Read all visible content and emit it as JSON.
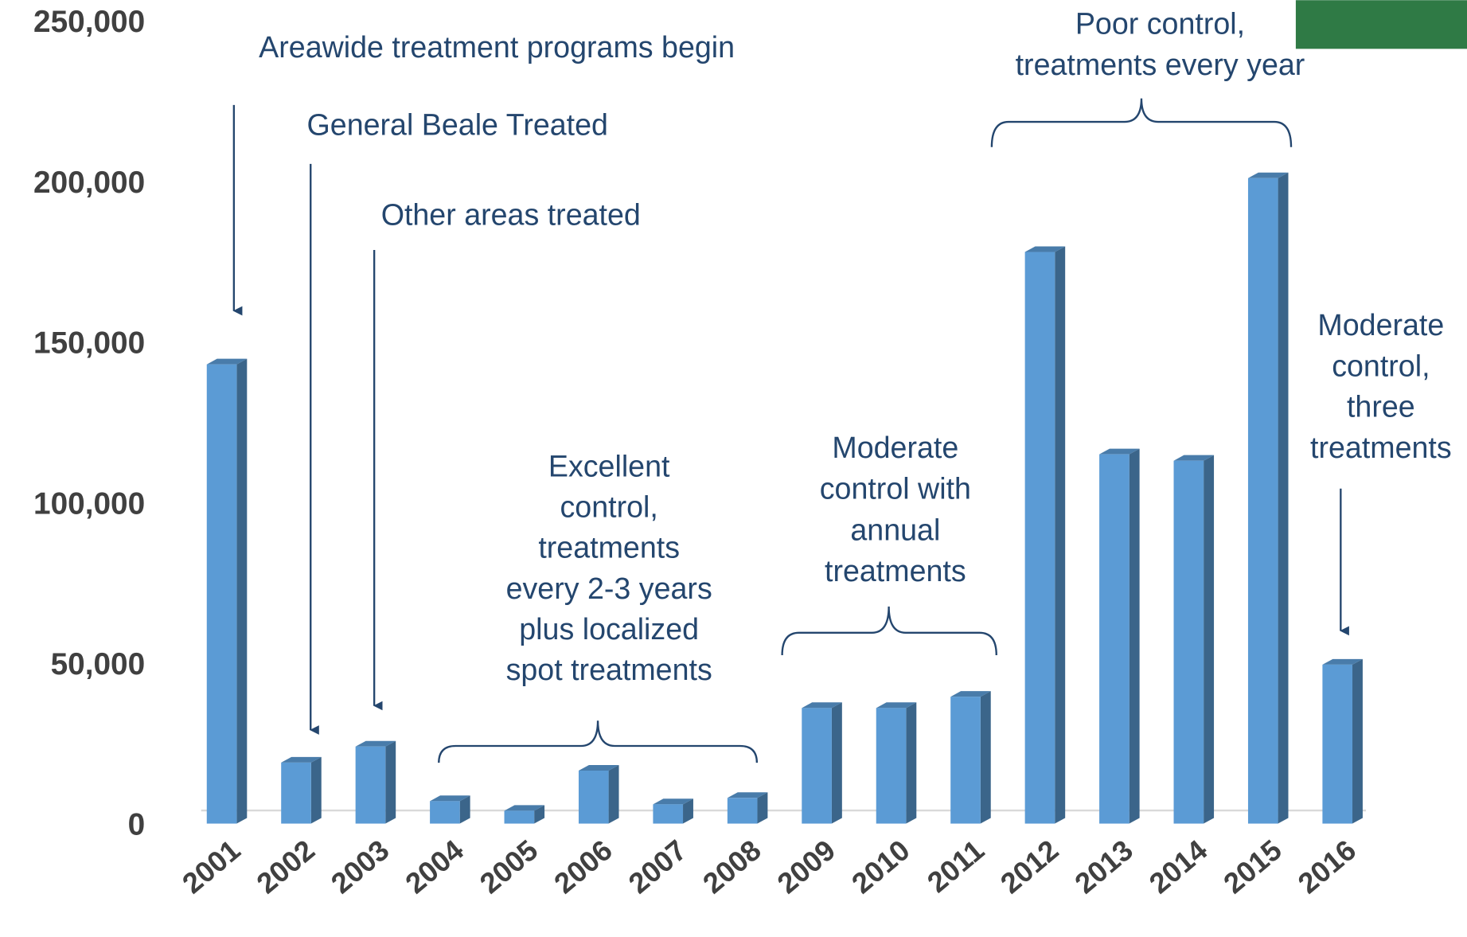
{
  "chart_data": {
    "type": "bar",
    "categories": [
      "2001",
      "2002",
      "2003",
      "2004",
      "2005",
      "2006",
      "2007",
      "2008",
      "2009",
      "2010",
      "2011",
      "2012",
      "2013",
      "2014",
      "2015",
      "2016"
    ],
    "values": [
      143000,
      19000,
      24000,
      7000,
      4000,
      16500,
      6000,
      8000,
      36000,
      36000,
      39500,
      178000,
      115000,
      113000,
      201000,
      49500
    ],
    "color": "#5b9bd5",
    "ylim": [
      0,
      250000
    ],
    "yticks": [
      {
        "value": 0,
        "label": "0"
      },
      {
        "value": 50000,
        "label": "50,000"
      },
      {
        "value": 100000,
        "label": "100,000"
      },
      {
        "value": 150000,
        "label": "150,000"
      },
      {
        "value": 200000,
        "label": "200,000"
      },
      {
        "value": 250000,
        "label": "250,000"
      }
    ],
    "annotations": [
      {
        "lines": [
          "Areawide treatment programs begin"
        ]
      },
      {
        "lines": [
          "General Beale Treated"
        ]
      },
      {
        "lines": [
          "Other areas treated"
        ]
      },
      {
        "lines": [
          "Excellent",
          "control,",
          "treatments",
          "every 2-3 years",
          "plus localized",
          "spot treatments"
        ]
      },
      {
        "lines": [
          "Moderate",
          "control with",
          "annual",
          "treatments"
        ]
      },
      {
        "lines": [
          "Poor control,",
          "treatments every year"
        ]
      },
      {
        "lines": [
          "Moderate",
          "control,",
          "three",
          "treatments"
        ]
      }
    ]
  }
}
